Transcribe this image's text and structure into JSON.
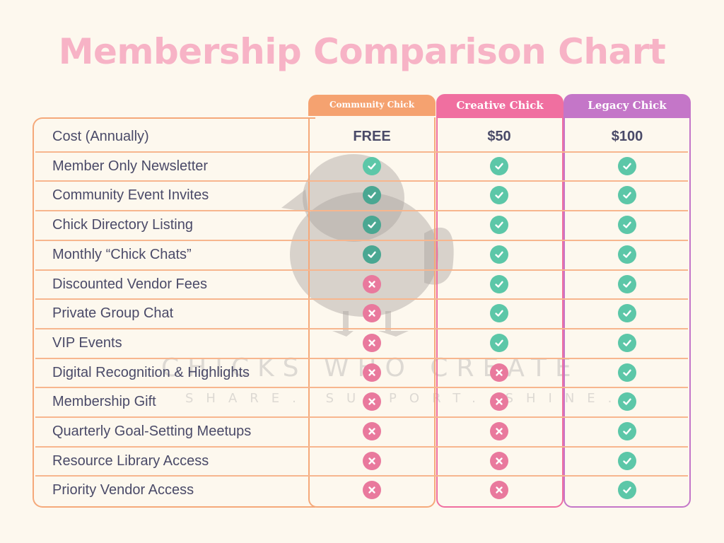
{
  "title": "Membership Comparison Chart",
  "watermark": {
    "line1": "CHICKS WHO CREATE",
    "line2": "SHARE. SUPPORT. SHINE."
  },
  "tiers": [
    {
      "name": "Community Chick",
      "cost": "FREE",
      "color": "#f5a270"
    },
    {
      "name": "Creative Chick",
      "cost": "$50",
      "color": "#f06fa0"
    },
    {
      "name": "Legacy Chick",
      "cost": "$100",
      "color": "#c476c8"
    }
  ],
  "cost_label": "Cost (Annually)",
  "features": [
    {
      "label": "Member Only Newsletter",
      "included": [
        true,
        true,
        true
      ]
    },
    {
      "label": "Community Event Invites",
      "included": [
        true,
        true,
        true
      ]
    },
    {
      "label": "Chick Directory Listing",
      "included": [
        true,
        true,
        true
      ]
    },
    {
      "label": "Monthly “Chick Chats”",
      "included": [
        true,
        true,
        true
      ]
    },
    {
      "label": "Discounted Vendor Fees",
      "included": [
        false,
        true,
        true
      ]
    },
    {
      "label": "Private Group Chat",
      "included": [
        false,
        true,
        true
      ]
    },
    {
      "label": "VIP Events",
      "included": [
        false,
        true,
        true
      ]
    },
    {
      "label": "Digital Recognition & Highlights",
      "included": [
        false,
        false,
        true
      ]
    },
    {
      "label": "Membership Gift",
      "included": [
        false,
        false,
        true
      ]
    },
    {
      "label": "Quarterly Goal-Setting Meetups",
      "included": [
        false,
        false,
        true
      ]
    },
    {
      "label": "Resource Library Access",
      "included": [
        false,
        false,
        true
      ]
    },
    {
      "label": "Priority Vendor Access",
      "included": [
        false,
        false,
        true
      ]
    }
  ],
  "colors": {
    "check": "#5cc7a8",
    "cross": "#e9799d",
    "title": "#f7b3c6",
    "text": "#4a4a68"
  }
}
